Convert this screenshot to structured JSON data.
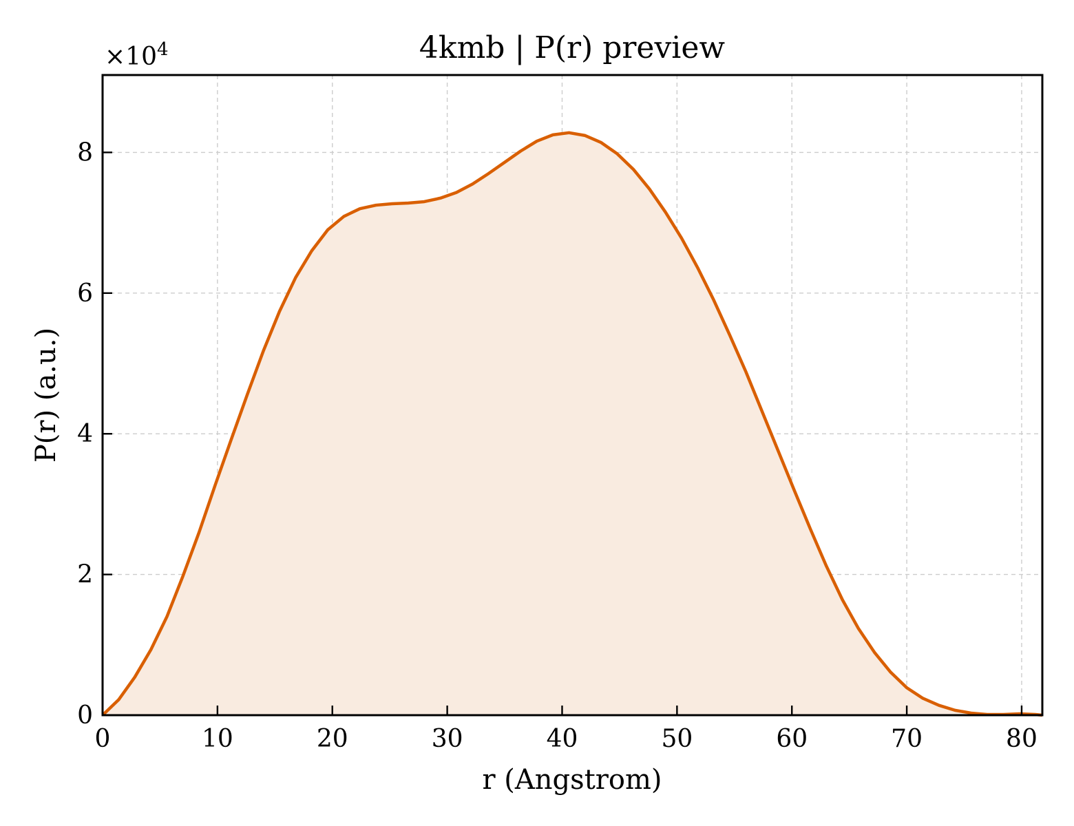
{
  "chart_data": {
    "type": "area",
    "title": "4kmb | P(r) preview",
    "xlabel": "r (Angstrom)",
    "ylabel": "P(r) (a.u.)",
    "y_multiplier_label": "×10",
    "y_multiplier_exponent": "4",
    "xlim": [
      0,
      81.8
    ],
    "ylim": [
      0,
      91000
    ],
    "x_ticks": [
      0,
      10,
      20,
      30,
      40,
      50,
      60,
      70,
      80
    ],
    "y_ticks": [
      0,
      20000,
      40000,
      60000,
      80000
    ],
    "y_tick_labels": [
      "0",
      "2",
      "4",
      "6",
      "8"
    ],
    "grid": true,
    "line_color": "#d95f02",
    "fill_color": "#f9ebe0",
    "series": [
      {
        "x": [
          0,
          1.4,
          2.8,
          4.2,
          5.6,
          7.0,
          8.4,
          9.8,
          11.2,
          12.6,
          14.0,
          15.4,
          16.8,
          18.2,
          19.6,
          21.0,
          22.4,
          23.8,
          25.2,
          26.6,
          28.0,
          29.4,
          30.8,
          32.2,
          33.6,
          35.0,
          36.4,
          37.8,
          39.2,
          40.6,
          42.0,
          43.4,
          44.8,
          46.2,
          47.6,
          49.0,
          50.4,
          51.8,
          53.2,
          54.6,
          56.0,
          57.4,
          58.8,
          60.2,
          61.6,
          63.0,
          64.4,
          65.8,
          67.2,
          68.6,
          70.0,
          71.4,
          72.8,
          74.2,
          75.6,
          77.0,
          78.4,
          79.8,
          81.2,
          81.8
        ],
        "y": [
          0,
          2200,
          5400,
          9300,
          14000,
          19800,
          26000,
          32700,
          39200,
          45600,
          51800,
          57400,
          62200,
          66000,
          69000,
          70900,
          72000,
          72500,
          72700,
          72800,
          73000,
          73500,
          74300,
          75500,
          77000,
          78600,
          80200,
          81600,
          82500,
          82800,
          82400,
          81400,
          79800,
          77600,
          74800,
          71500,
          67800,
          63600,
          59000,
          54000,
          48800,
          43200,
          37600,
          32000,
          26500,
          21200,
          16400,
          12300,
          8900,
          6100,
          3900,
          2400,
          1400,
          700,
          300,
          100,
          100,
          200,
          100,
          0
        ]
      }
    ]
  }
}
